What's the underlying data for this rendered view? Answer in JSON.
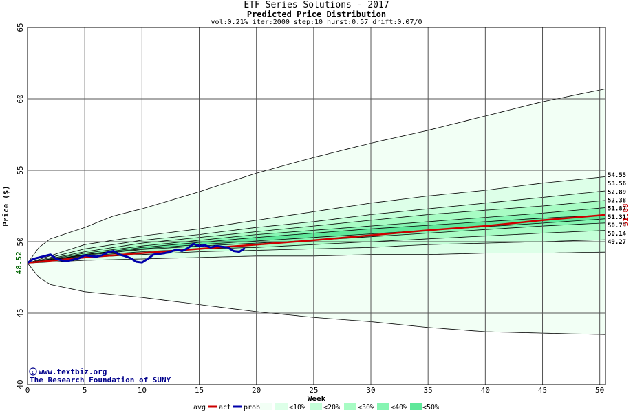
{
  "chart_data": {
    "type": "line",
    "title": "ETF Series Solutions - 2017",
    "subtitle": "Predicted Price Distribution",
    "params": "vol:0.21% iter:2000 step:10 hurst:0.57 drift:0.07/0",
    "xlabel": "Week",
    "ylabel": "Price ($)",
    "xlim": [
      0,
      50.5
    ],
    "ylim": [
      40,
      65
    ],
    "x_ticks": [
      0,
      5,
      10,
      15,
      20,
      25,
      30,
      35,
      40,
      45,
      50
    ],
    "y_ticks": [
      40,
      45,
      50,
      55,
      60,
      65
    ],
    "grid": true,
    "start_price": "48.52",
    "end_avg_price": "51.88",
    "credit_line1": "www.textbiz.org",
    "credit_line2": "The Research Foundation of SUNY",
    "end_labels": [
      "54.55",
      "53.56",
      "52.89",
      "52.38",
      "51.87",
      "51.31",
      "50.79",
      "50.14",
      "49.27"
    ],
    "bands": [
      {
        "name": "<0%",
        "color": "#f2fff5",
        "upper": [
          [
            0,
            48.5
          ],
          [
            1,
            49.6
          ],
          [
            2,
            50.2
          ],
          [
            5,
            51
          ],
          [
            7.5,
            51.8
          ],
          [
            10,
            52.3
          ],
          [
            15,
            53.5
          ],
          [
            20,
            54.8
          ],
          [
            25,
            55.9
          ],
          [
            30,
            56.9
          ],
          [
            35,
            57.8
          ],
          [
            40,
            58.8
          ],
          [
            45,
            59.8
          ],
          [
            50.5,
            60.7
          ]
        ],
        "lower": [
          [
            0,
            48.5
          ],
          [
            1,
            47.5
          ],
          [
            2,
            47
          ],
          [
            5,
            46.5
          ],
          [
            10,
            46.1
          ],
          [
            15,
            45.6
          ],
          [
            20,
            45.1
          ],
          [
            25,
            44.7
          ],
          [
            30,
            44.4
          ],
          [
            35,
            44
          ],
          [
            40,
            43.7
          ],
          [
            45,
            43.6
          ],
          [
            50.5,
            43.5
          ]
        ]
      },
      {
        "name": "<10%",
        "color": "#ddffe8",
        "upper": [
          [
            0,
            48.5
          ],
          [
            5,
            49.8
          ],
          [
            10,
            50.4
          ],
          [
            15,
            50.9
          ],
          [
            20,
            51.5
          ],
          [
            25,
            52.1
          ],
          [
            30,
            52.7
          ],
          [
            35,
            53.2
          ],
          [
            40,
            53.6
          ],
          [
            45,
            54.1
          ],
          [
            50.5,
            54.55
          ]
        ],
        "lower": [
          [
            0,
            48.5
          ],
          [
            5,
            48.7
          ],
          [
            10,
            48.8
          ],
          [
            15,
            48.9
          ],
          [
            20,
            49
          ],
          [
            25,
            49
          ],
          [
            30,
            49.1
          ],
          [
            35,
            49.1
          ],
          [
            40,
            49.2
          ],
          [
            45,
            49.2
          ],
          [
            50.5,
            49.27
          ]
        ]
      },
      {
        "name": "<20%",
        "color": "#c4ffd8",
        "upper": [
          [
            0,
            48.5
          ],
          [
            5,
            49.5
          ],
          [
            10,
            50.1
          ],
          [
            15,
            50.5
          ],
          [
            20,
            51
          ],
          [
            25,
            51.4
          ],
          [
            30,
            51.9
          ],
          [
            35,
            52.3
          ],
          [
            40,
            52.7
          ],
          [
            45,
            53.1
          ],
          [
            50.5,
            53.56
          ]
        ],
        "lower": [
          [
            0,
            48.5
          ],
          [
            5,
            48.9
          ],
          [
            10,
            49.1
          ],
          [
            15,
            49.3
          ],
          [
            20,
            49.4
          ],
          [
            25,
            49.5
          ],
          [
            30,
            49.6
          ],
          [
            35,
            49.8
          ],
          [
            40,
            49.9
          ],
          [
            45,
            50
          ],
          [
            50.5,
            50.14
          ]
        ]
      },
      {
        "name": "<30%",
        "color": "#a8fcc4",
        "upper": [
          [
            0,
            48.5
          ],
          [
            5,
            49.3
          ],
          [
            10,
            49.9
          ],
          [
            15,
            50.3
          ],
          [
            20,
            50.7
          ],
          [
            25,
            51.1
          ],
          [
            30,
            51.5
          ],
          [
            35,
            51.9
          ],
          [
            40,
            52.2
          ],
          [
            45,
            52.5
          ],
          [
            50.5,
            52.89
          ]
        ],
        "lower": [
          [
            0,
            48.5
          ],
          [
            5,
            49
          ],
          [
            10,
            49.3
          ],
          [
            15,
            49.5
          ],
          [
            20,
            49.6
          ],
          [
            25,
            49.8
          ],
          [
            30,
            50
          ],
          [
            35,
            50.2
          ],
          [
            40,
            50.4
          ],
          [
            45,
            50.6
          ],
          [
            50.5,
            50.79
          ]
        ]
      },
      {
        "name": "<40%",
        "color": "#86f5b2",
        "upper": [
          [
            0,
            48.5
          ],
          [
            5,
            49.2
          ],
          [
            10,
            49.7
          ],
          [
            15,
            50.1
          ],
          [
            20,
            50.5
          ],
          [
            25,
            50.8
          ],
          [
            30,
            51.1
          ],
          [
            35,
            51.4
          ],
          [
            40,
            51.7
          ],
          [
            45,
            52
          ],
          [
            50.5,
            52.38
          ]
        ],
        "lower": [
          [
            0,
            48.5
          ],
          [
            5,
            49.05
          ],
          [
            10,
            49.45
          ],
          [
            15,
            49.7
          ],
          [
            20,
            49.9
          ],
          [
            25,
            50.1
          ],
          [
            30,
            50.35
          ],
          [
            35,
            50.6
          ],
          [
            40,
            50.85
          ],
          [
            45,
            51.1
          ],
          [
            50.5,
            51.31
          ]
        ]
      },
      {
        "name": "<50%",
        "color": "#5fe89a",
        "upper": [
          [
            0,
            48.5
          ],
          [
            5,
            49.1
          ],
          [
            10,
            49.6
          ],
          [
            15,
            49.95
          ],
          [
            20,
            50.3
          ],
          [
            25,
            50.6
          ],
          [
            30,
            50.9
          ],
          [
            35,
            51.15
          ],
          [
            40,
            51.4
          ],
          [
            45,
            51.65
          ],
          [
            50.5,
            51.87
          ]
        ],
        "lower": [
          [
            0,
            48.5
          ],
          [
            5,
            49.1
          ],
          [
            10,
            49.5
          ],
          [
            15,
            49.8
          ],
          [
            20,
            50.05
          ],
          [
            25,
            50.3
          ],
          [
            30,
            50.55
          ],
          [
            35,
            50.8
          ],
          [
            40,
            51.05
          ],
          [
            45,
            51.3
          ],
          [
            50.5,
            51.6
          ]
        ]
      }
    ],
    "series": [
      {
        "name": "avg",
        "color": "#cc0000",
        "points": [
          [
            0,
            48.52
          ],
          [
            5,
            48.9
          ],
          [
            10,
            49.2
          ],
          [
            15,
            49.5
          ],
          [
            20,
            49.8
          ],
          [
            25,
            50.1
          ],
          [
            30,
            50.45
          ],
          [
            35,
            50.8
          ],
          [
            40,
            51.1
          ],
          [
            45,
            51.5
          ],
          [
            50.5,
            51.88
          ]
        ]
      },
      {
        "name": "act",
        "color": "#0000aa",
        "points": [
          [
            0,
            48.52
          ],
          [
            0.5,
            48.8
          ],
          [
            1,
            48.9
          ],
          [
            1.5,
            49
          ],
          [
            2,
            49.1
          ],
          [
            2.5,
            48.8
          ],
          [
            3,
            48.7
          ],
          [
            3.5,
            48.65
          ],
          [
            4,
            48.75
          ],
          [
            4.5,
            48.85
          ],
          [
            5,
            49.05
          ],
          [
            5.5,
            49
          ],
          [
            6,
            48.95
          ],
          [
            6.5,
            49.05
          ],
          [
            7,
            49.25
          ],
          [
            7.5,
            49.35
          ],
          [
            8,
            49.1
          ],
          [
            8.5,
            49
          ],
          [
            9,
            48.85
          ],
          [
            9.5,
            48.6
          ],
          [
            10,
            48.55
          ],
          [
            10.5,
            48.8
          ],
          [
            11,
            49.1
          ],
          [
            11.5,
            49.15
          ],
          [
            12,
            49.2
          ],
          [
            12.5,
            49.3
          ],
          [
            13,
            49.45
          ],
          [
            13.5,
            49.35
          ],
          [
            14,
            49.55
          ],
          [
            14.5,
            49.85
          ],
          [
            15,
            49.7
          ],
          [
            15.5,
            49.75
          ],
          [
            16,
            49.6
          ],
          [
            16.5,
            49.7
          ],
          [
            17,
            49.65
          ],
          [
            17.5,
            49.6
          ],
          [
            18,
            49.35
          ],
          [
            18.5,
            49.3
          ],
          [
            19,
            49.55
          ]
        ]
      }
    ],
    "legend": {
      "position": "bottom",
      "items": [
        "avg",
        "act",
        "prob:0%",
        "<10%",
        "<20%",
        "<30%",
        "<40%",
        "<50%"
      ]
    }
  }
}
